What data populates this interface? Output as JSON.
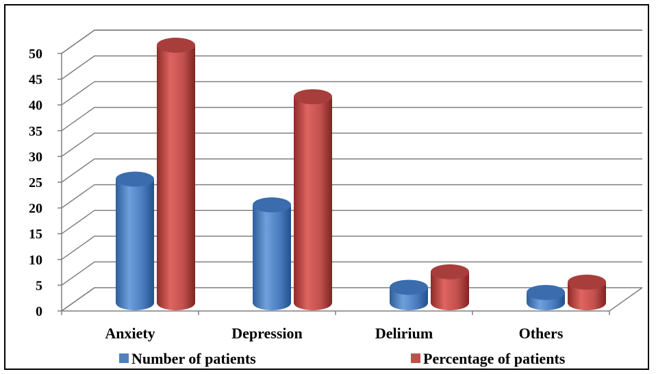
{
  "chart_data": {
    "type": "bar",
    "style": "3d-cylinder",
    "categories": [
      "Anxiety",
      "Depression",
      "Delirium",
      "Others"
    ],
    "series": [
      {
        "name": "Number of patients",
        "values": [
          24,
          19,
          3,
          2
        ],
        "color": "#4F81BD"
      },
      {
        "name": "Percentage of patients",
        "values": [
          50,
          40,
          6,
          4
        ],
        "color": "#C0504D"
      }
    ],
    "ylim": [
      0,
      50
    ],
    "yticks": [
      0,
      5,
      10,
      15,
      20,
      25,
      30,
      35,
      40,
      45,
      50
    ],
    "grid": true,
    "legend": "bottom",
    "title": "",
    "xlabel": "",
    "ylabel": ""
  }
}
